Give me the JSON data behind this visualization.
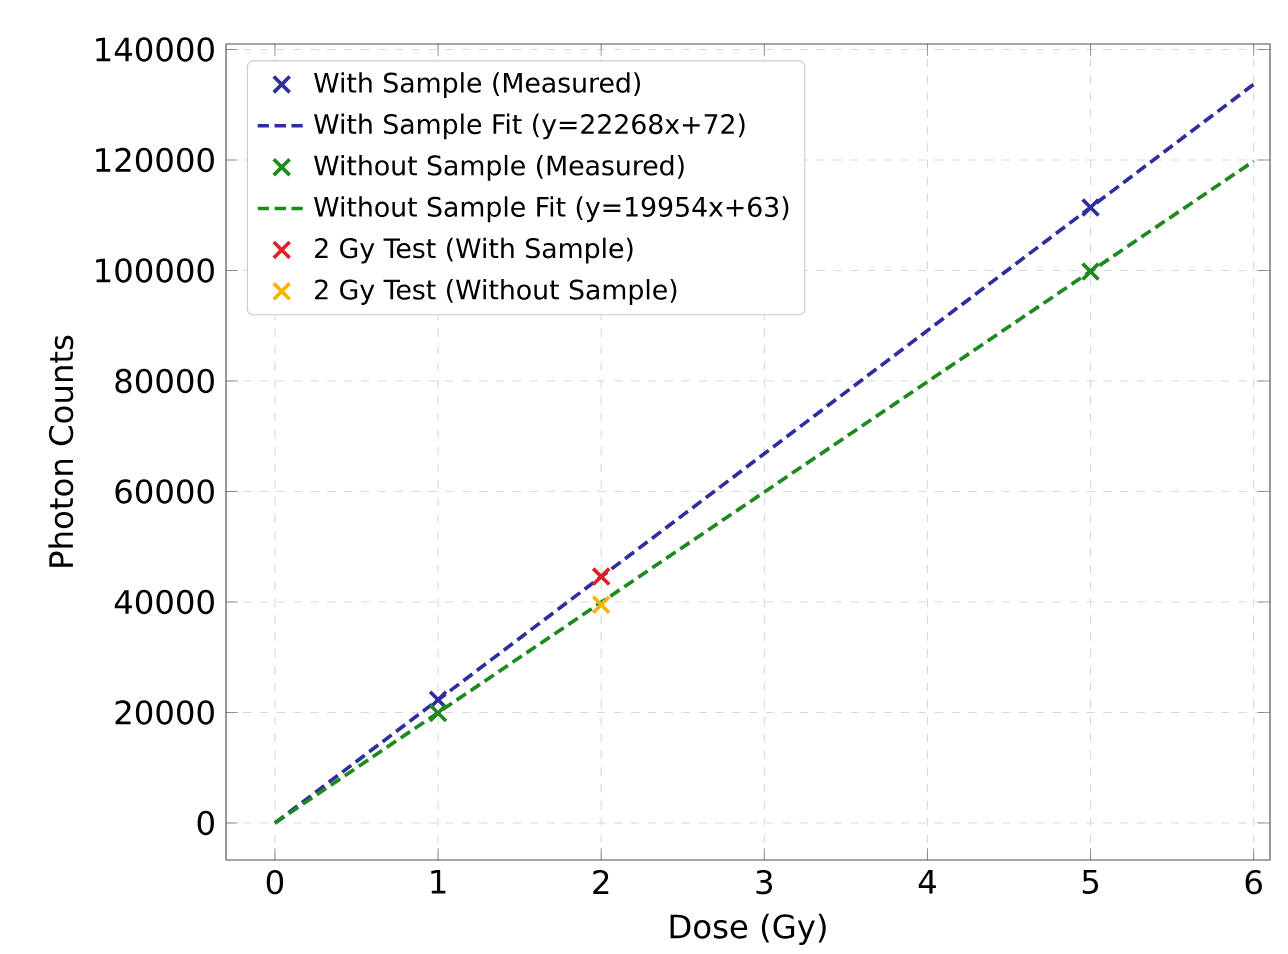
{
  "chart_data": {
    "type": "scatter",
    "xlabel": "Dose (Gy)",
    "ylabel": "Photon Counts",
    "xlim": [
      -0.3,
      6.1
    ],
    "ylim": [
      -6700,
      141000
    ],
    "xticks": [
      0,
      1,
      2,
      3,
      4,
      5,
      6
    ],
    "yticks": [
      0,
      20000,
      40000,
      60000,
      80000,
      100000,
      120000,
      140000
    ],
    "grid": true,
    "legend": "top left",
    "marker": "cross",
    "series": [
      {
        "name": "With Sample (Measured)",
        "color": "#2e2e9e",
        "x": [
          1,
          5
        ],
        "values": [
          22300,
          111400
        ]
      },
      {
        "name": "With Sample Fit (y=22268x+72)",
        "type": "line",
        "marker": "none",
        "line_style": "dashed",
        "color": "#2e2e9e",
        "x": [
          0,
          6
        ],
        "values": [
          0,
          133700
        ]
      },
      {
        "name": "Without Sample (Measured)",
        "color": "#1e8a1e",
        "x": [
          1,
          5
        ],
        "values": [
          19900,
          99800
        ]
      },
      {
        "name": "Without Sample Fit (y=19954x+63)",
        "type": "line",
        "marker": "none",
        "line_style": "dashed",
        "color": "#1e8a1e",
        "x": [
          0,
          6
        ],
        "values": [
          0,
          119800
        ]
      },
      {
        "name": "2 Gy Test (With Sample)",
        "color": "#e0202a",
        "x": [
          2
        ],
        "values": [
          44600
        ]
      },
      {
        "name": "2 Gy Test (Without Sample)",
        "color": "#f5b400",
        "x": [
          2
        ],
        "values": [
          39500
        ]
      }
    ]
  }
}
